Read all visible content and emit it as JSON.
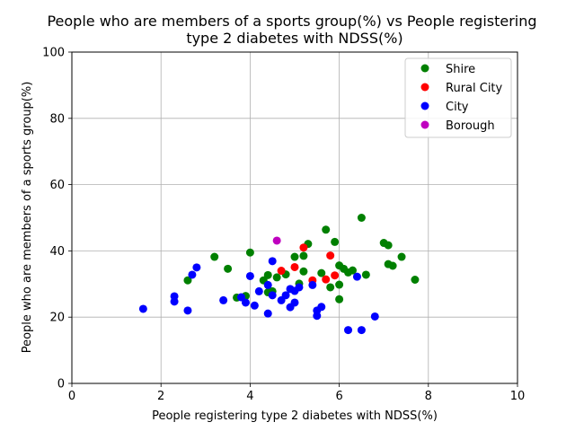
{
  "chart_data": {
    "type": "scatter",
    "title_line1": "People who are members of a sports group(%) vs People registering",
    "title_line2": "type 2 diabetes with NDSS(%)",
    "xlabel": "People registering type 2 diabetes with NDSS(%)",
    "ylabel": "People who are members of a sports group(%)",
    "xlim": [
      0,
      10
    ],
    "ylim": [
      0,
      100
    ],
    "xticks": [
      0,
      2,
      4,
      6,
      8,
      10
    ],
    "yticks": [
      0,
      20,
      40,
      60,
      80,
      100
    ],
    "grid": true,
    "legend_position": "top-right",
    "series": [
      {
        "name": "Shire",
        "color": "#008000",
        "points": [
          [
            2.6,
            31.1
          ],
          [
            3.2,
            38.2
          ],
          [
            3.5,
            34.6
          ],
          [
            3.7,
            25.9
          ],
          [
            3.9,
            26.4
          ],
          [
            4.0,
            39.5
          ],
          [
            4.3,
            31.1
          ],
          [
            4.4,
            32.7
          ],
          [
            4.4,
            27.5
          ],
          [
            4.5,
            27.8
          ],
          [
            4.6,
            32.0
          ],
          [
            4.8,
            32.9
          ],
          [
            5.0,
            38.2
          ],
          [
            5.1,
            30.1
          ],
          [
            5.2,
            38.5
          ],
          [
            5.2,
            33.8
          ],
          [
            5.3,
            42.1
          ],
          [
            5.6,
            33.3
          ],
          [
            5.7,
            46.4
          ],
          [
            5.8,
            29.0
          ],
          [
            5.9,
            42.7
          ],
          [
            6.0,
            35.6
          ],
          [
            6.0,
            29.8
          ],
          [
            6.0,
            25.4
          ],
          [
            6.1,
            34.6
          ],
          [
            6.2,
            33.5
          ],
          [
            6.3,
            34.1
          ],
          [
            6.5,
            50.0
          ],
          [
            6.6,
            32.8
          ],
          [
            7.0,
            42.4
          ],
          [
            7.1,
            41.7
          ],
          [
            7.1,
            36.0
          ],
          [
            7.2,
            35.5
          ],
          [
            7.4,
            38.2
          ],
          [
            7.7,
            31.3
          ]
        ]
      },
      {
        "name": "Rural City",
        "color": "#ff0000",
        "points": [
          [
            4.7,
            34.0
          ],
          [
            5.0,
            35.1
          ],
          [
            5.2,
            41.0
          ],
          [
            5.4,
            31.1
          ],
          [
            5.7,
            31.4
          ],
          [
            5.8,
            38.6
          ],
          [
            5.9,
            32.6
          ]
        ]
      },
      {
        "name": "City",
        "color": "#0000ff",
        "points": [
          [
            1.6,
            22.5
          ],
          [
            2.3,
            26.3
          ],
          [
            2.3,
            24.7
          ],
          [
            2.6,
            22.0
          ],
          [
            2.7,
            32.8
          ],
          [
            2.8,
            35.0
          ],
          [
            3.4,
            25.1
          ],
          [
            3.8,
            26.0
          ],
          [
            3.9,
            24.4
          ],
          [
            4.0,
            32.4
          ],
          [
            4.1,
            23.5
          ],
          [
            4.2,
            27.8
          ],
          [
            4.4,
            29.7
          ],
          [
            4.4,
            21.1
          ],
          [
            4.5,
            36.9
          ],
          [
            4.5,
            26.6
          ],
          [
            4.7,
            25.1
          ],
          [
            4.8,
            26.6
          ],
          [
            4.9,
            28.5
          ],
          [
            4.9,
            23.0
          ],
          [
            5.0,
            27.9
          ],
          [
            5.0,
            24.4
          ],
          [
            5.1,
            29.0
          ],
          [
            5.4,
            29.7
          ],
          [
            5.5,
            22.0
          ],
          [
            5.5,
            20.4
          ],
          [
            5.6,
            23.1
          ],
          [
            6.2,
            16.1
          ],
          [
            6.4,
            32.2
          ],
          [
            6.5,
            16.1
          ],
          [
            6.8,
            20.2
          ]
        ]
      },
      {
        "name": "Borough",
        "color": "#bf00bf",
        "points": [
          [
            4.6,
            43.1
          ]
        ]
      }
    ]
  }
}
